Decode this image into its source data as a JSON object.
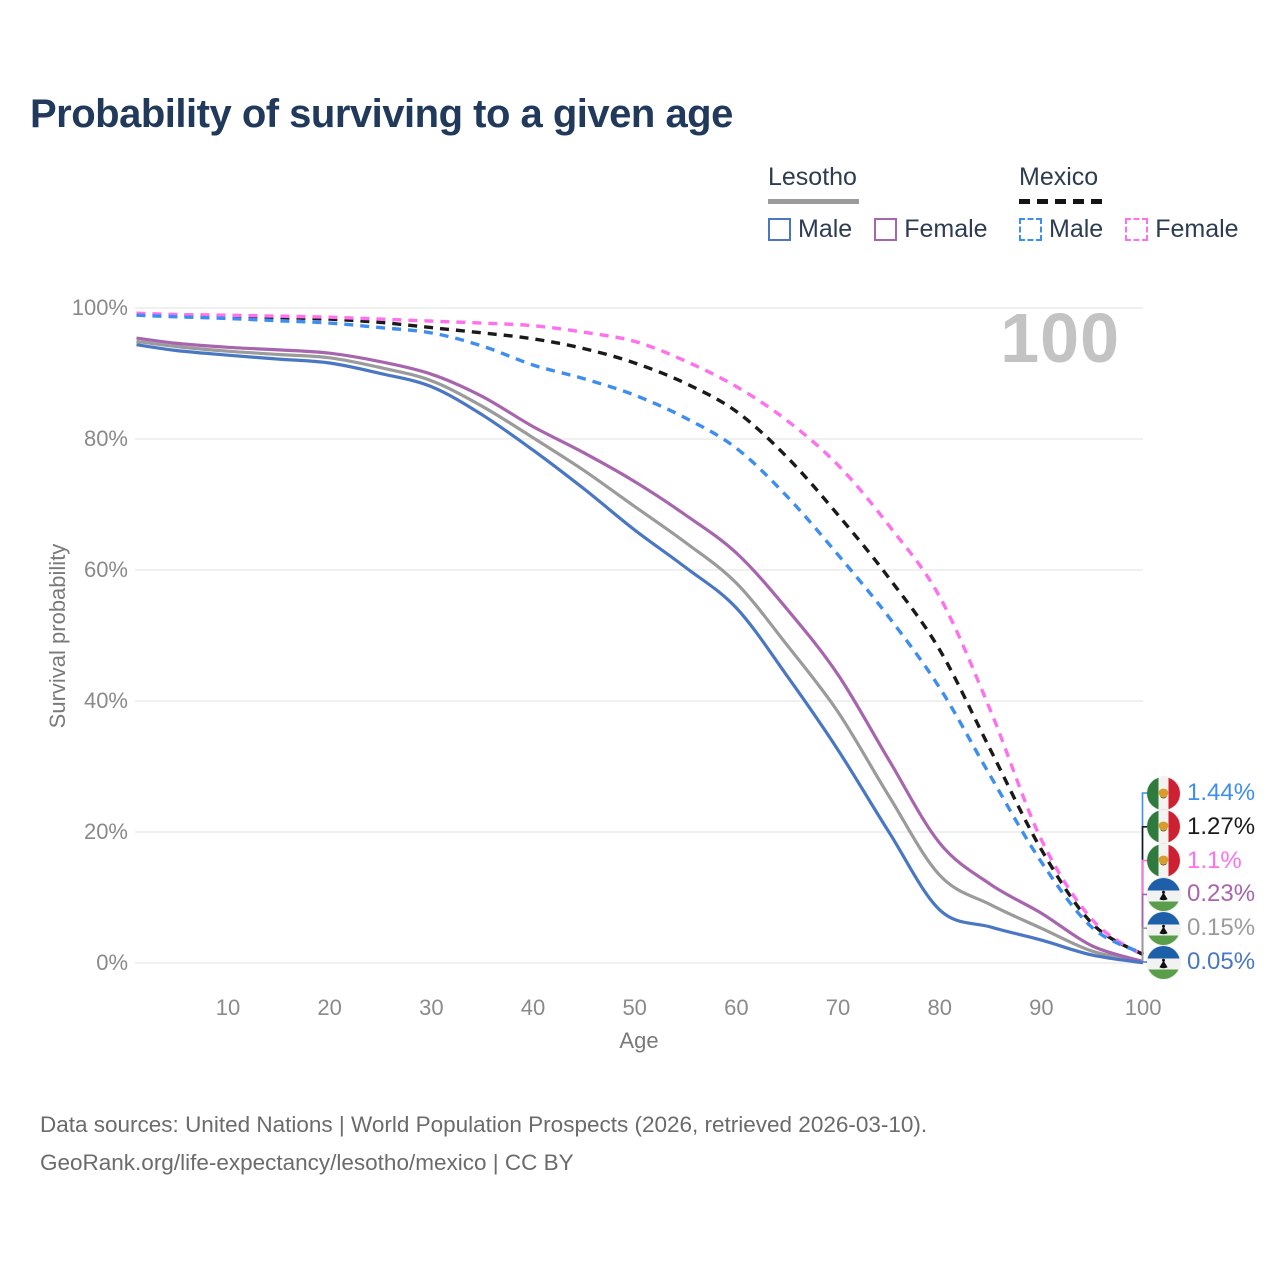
{
  "title": "Probability of surviving to a given age",
  "watermark": "100",
  "legend": {
    "groups": [
      {
        "country": "Lesotho",
        "line_style": "solid",
        "line_color": "#9B9B9B",
        "items": [
          {
            "label": "Male",
            "color": "#4A77C4",
            "dashed": false
          },
          {
            "label": "Female",
            "color": "#A765AE",
            "dashed": false
          }
        ]
      },
      {
        "country": "Mexico",
        "line_style": "dashed",
        "line_color": "#141414",
        "items": [
          {
            "label": "Male",
            "color": "#3E8EF0",
            "dashed": true
          },
          {
            "label": "Female",
            "color": "#FF70EC",
            "dashed": true
          }
        ]
      }
    ]
  },
  "chart_data": {
    "type": "line",
    "title": "Probability of surviving to a given age",
    "xlabel": "Age",
    "ylabel": "Survival probability",
    "xlim": [
      1,
      100
    ],
    "ylim": [
      0,
      100
    ],
    "grid": "horizontal-only",
    "x_ticks": [
      10,
      20,
      30,
      40,
      50,
      60,
      70,
      80,
      90,
      100
    ],
    "y_ticks": [
      {
        "value": 0,
        "label": "0%"
      },
      {
        "value": 20,
        "label": "20%"
      },
      {
        "value": 40,
        "label": "40%"
      },
      {
        "value": 60,
        "label": "60%"
      },
      {
        "value": 80,
        "label": "80%"
      },
      {
        "value": 100,
        "label": "100%"
      }
    ],
    "x": [
      1,
      5,
      10,
      15,
      20,
      25,
      30,
      35,
      40,
      45,
      50,
      55,
      60,
      65,
      70,
      75,
      80,
      85,
      90,
      95,
      100
    ],
    "series": [
      {
        "name": "Lesotho Both sexes",
        "country": "Lesotho",
        "sex": "Both",
        "color": "#9B9B9B",
        "dashed": false,
        "values": [
          94.9,
          94.1,
          93.4,
          92.9,
          92.4,
          90.9,
          88.9,
          85.0,
          80.2,
          75.2,
          69.7,
          64.2,
          58.0,
          48.5,
          38.3,
          25.5,
          13.4,
          8.9,
          5.3,
          1.8,
          0.15
        ]
      },
      {
        "name": "Lesotho Female",
        "country": "Lesotho",
        "sex": "Female",
        "color": "#A765AE",
        "dashed": false,
        "values": [
          95.4,
          94.6,
          94.0,
          93.6,
          93.1,
          91.8,
          89.9,
          86.5,
          81.9,
          77.9,
          73.5,
          68.4,
          62.6,
          54.0,
          44.0,
          31.0,
          18.3,
          12.0,
          7.6,
          2.6,
          0.23
        ]
      },
      {
        "name": "Lesotho Male",
        "country": "Lesotho",
        "sex": "Male",
        "color": "#4A77C4",
        "dashed": false,
        "values": [
          94.4,
          93.5,
          92.8,
          92.2,
          91.6,
          90.0,
          88.0,
          83.7,
          78.3,
          72.4,
          66.1,
          60.4,
          54.2,
          43.8,
          32.5,
          20.0,
          8.1,
          5.5,
          3.5,
          1.2,
          0.05
        ]
      },
      {
        "name": "Mexico Both sexes",
        "country": "Mexico",
        "sex": "Both",
        "color": "#1A1A1A",
        "dashed": true,
        "values": [
          99.1,
          98.95,
          98.8,
          98.55,
          98.3,
          97.8,
          97.0,
          96.2,
          95.3,
          93.8,
          91.6,
          88.5,
          84.2,
          77.2,
          68.4,
          58.8,
          47.8,
          32.5,
          17.3,
          6.0,
          1.27
        ]
      },
      {
        "name": "Mexico Female",
        "country": "Mexico",
        "sex": "Female",
        "color": "#FF70EC",
        "dashed": true,
        "values": [
          99.2,
          99.0,
          98.9,
          98.75,
          98.6,
          98.3,
          98.0,
          97.7,
          97.3,
          96.3,
          94.9,
          91.9,
          88.0,
          82.8,
          76.0,
          66.8,
          55.9,
          38.5,
          18.8,
          6.6,
          1.1
        ]
      },
      {
        "name": "Mexico Male",
        "country": "Mexico",
        "sex": "Male",
        "color": "#3E8EF0",
        "dashed": true,
        "values": [
          98.9,
          98.65,
          98.4,
          98.05,
          97.7,
          97.0,
          96.2,
          94.2,
          91.3,
          89.2,
          86.7,
          83.2,
          78.6,
          71.2,
          62.3,
          52.8,
          42.0,
          28.5,
          15.4,
          5.4,
          1.44
        ]
      }
    ],
    "end_labels": [
      {
        "text": "1.44%",
        "value": 1.44,
        "color": "#3E8EF0",
        "flag": "mexico",
        "series": "Mexico Male"
      },
      {
        "text": "1.27%",
        "value": 1.27,
        "color": "#1A1A1A",
        "flag": "mexico",
        "series": "Mexico Both sexes"
      },
      {
        "text": "1.1%",
        "value": 1.1,
        "color": "#FF70EC",
        "flag": "mexico",
        "series": "Mexico Female"
      },
      {
        "text": "0.23%",
        "value": 0.23,
        "color": "#A765AE",
        "flag": "lesotho",
        "series": "Lesotho Female"
      },
      {
        "text": "0.15%",
        "value": 0.15,
        "color": "#9B9B9B",
        "flag": "lesotho",
        "series": "Lesotho Both sexes"
      },
      {
        "text": "0.05%",
        "value": 0.05,
        "color": "#4A77C4",
        "flag": "lesotho",
        "series": "Lesotho Male"
      }
    ]
  },
  "footer": {
    "line1": "Data sources: United Nations | World Population Prospects (2026, retrieved 2026-03-10).",
    "line2": "GeoRank.org/life-expectancy/lesotho/mexico | CC BY"
  }
}
